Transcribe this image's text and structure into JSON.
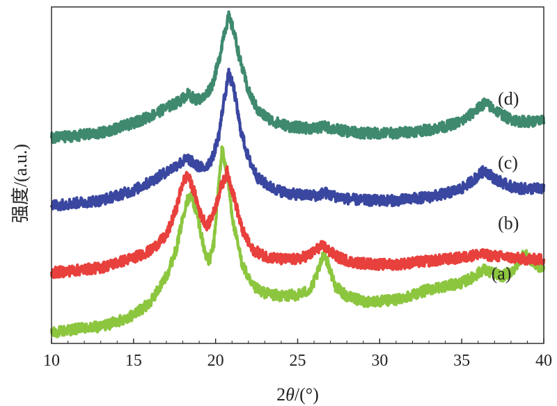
{
  "chart_data": {
    "type": "line",
    "title": "",
    "xlabel_prefix": "2",
    "xlabel_theta": "θ",
    "xlabel_suffix": "/(°)",
    "ylabel": "强度/(a.u.)",
    "xlim": [
      10,
      40
    ],
    "ylim": [
      0,
      100
    ],
    "x_ticks": [
      10,
      15,
      20,
      25,
      30,
      35,
      40
    ],
    "x_tick_labels": [
      "10",
      "15",
      "20",
      "25",
      "30",
      "35",
      "40"
    ],
    "y_ticks_visible": false,
    "grid": false,
    "series": [
      {
        "name": "(a)",
        "color": "#8cc63f",
        "label_at": [
          38.5,
          19
        ],
        "points": [
          [
            10,
            3
          ],
          [
            11,
            4
          ],
          [
            12,
            4.5
          ],
          [
            13,
            5
          ],
          [
            14,
            6.5
          ],
          [
            15,
            8.5
          ],
          [
            16,
            12
          ],
          [
            17,
            20
          ],
          [
            17.6,
            28
          ],
          [
            18.2,
            42
          ],
          [
            18.5,
            44
          ],
          [
            18.9,
            38
          ],
          [
            19.3,
            28
          ],
          [
            19.6,
            24
          ],
          [
            19.9,
            30
          ],
          [
            20.2,
            48
          ],
          [
            20.4,
            58
          ],
          [
            20.7,
            50
          ],
          [
            21.1,
            35
          ],
          [
            21.6,
            24
          ],
          [
            22.2,
            17
          ],
          [
            23,
            15
          ],
          [
            24,
            14
          ],
          [
            25,
            14.5
          ],
          [
            25.8,
            16
          ],
          [
            26.3,
            22
          ],
          [
            26.6,
            27
          ],
          [
            26.9,
            23
          ],
          [
            27.3,
            17
          ],
          [
            28,
            14
          ],
          [
            29,
            12.5
          ],
          [
            30,
            12.5
          ],
          [
            31,
            13
          ],
          [
            32,
            14.5
          ],
          [
            33,
            16
          ],
          [
            34,
            17
          ],
          [
            35,
            18
          ],
          [
            35.8,
            20
          ],
          [
            36.3,
            22
          ],
          [
            36.8,
            21
          ],
          [
            37.5,
            20
          ],
          [
            38.2,
            22
          ],
          [
            38.8,
            27
          ],
          [
            39.3,
            24
          ],
          [
            40,
            22
          ]
        ]
      },
      {
        "name": "(b)",
        "color": "#e8403c",
        "label_at": [
          38.9,
          34
        ],
        "points": [
          [
            10,
            21
          ],
          [
            11,
            21.5
          ],
          [
            12,
            22
          ],
          [
            13,
            22.5
          ],
          [
            14,
            24
          ],
          [
            15,
            25.5
          ],
          [
            16,
            27.5
          ],
          [
            17,
            32
          ],
          [
            17.6,
            40
          ],
          [
            18,
            48
          ],
          [
            18.3,
            50
          ],
          [
            18.7,
            45
          ],
          [
            19.1,
            38
          ],
          [
            19.5,
            35
          ],
          [
            19.9,
            39
          ],
          [
            20.3,
            46
          ],
          [
            20.7,
            51
          ],
          [
            21.1,
            44
          ],
          [
            21.6,
            34
          ],
          [
            22.2,
            28
          ],
          [
            23,
            26
          ],
          [
            24,
            25
          ],
          [
            25,
            25
          ],
          [
            25.8,
            26.5
          ],
          [
            26.3,
            28.5
          ],
          [
            26.6,
            29
          ],
          [
            26.9,
            27.5
          ],
          [
            27.5,
            25.5
          ],
          [
            28.5,
            24
          ],
          [
            30,
            23.5
          ],
          [
            31,
            23.5
          ],
          [
            32,
            24
          ],
          [
            33,
            24.5
          ],
          [
            34,
            25
          ],
          [
            35,
            25.5
          ],
          [
            36,
            26.5
          ],
          [
            37,
            26
          ],
          [
            38,
            25.5
          ],
          [
            39,
            25
          ],
          [
            40,
            25
          ]
        ]
      },
      {
        "name": "(c)",
        "color": "#3a47a0",
        "label_at": [
          38.9,
          52
        ],
        "points": [
          [
            10,
            41
          ],
          [
            11,
            41.5
          ],
          [
            12,
            42
          ],
          [
            13,
            42.5
          ],
          [
            14,
            44
          ],
          [
            15,
            45.5
          ],
          [
            16,
            48
          ],
          [
            17,
            51
          ],
          [
            17.8,
            53.5
          ],
          [
            18.3,
            55
          ],
          [
            18.8,
            53
          ],
          [
            19.3,
            52
          ],
          [
            19.8,
            55
          ],
          [
            20.2,
            62
          ],
          [
            20.5,
            72
          ],
          [
            20.8,
            80
          ],
          [
            21.1,
            76
          ],
          [
            21.5,
            64
          ],
          [
            22,
            55
          ],
          [
            22.6,
            49
          ],
          [
            23.5,
            46
          ],
          [
            24.5,
            44.5
          ],
          [
            25.5,
            44
          ],
          [
            26.3,
            44
          ],
          [
            26.6,
            45
          ],
          [
            27,
            44
          ],
          [
            28,
            43
          ],
          [
            29,
            42.5
          ],
          [
            30,
            42.5
          ],
          [
            31,
            42.5
          ],
          [
            32,
            43
          ],
          [
            33,
            43.5
          ],
          [
            34,
            44.5
          ],
          [
            35,
            46
          ],
          [
            35.8,
            49
          ],
          [
            36.4,
            51.5
          ],
          [
            37,
            49
          ],
          [
            37.8,
            47
          ],
          [
            38.5,
            46
          ],
          [
            39.3,
            46
          ],
          [
            40,
            46
          ]
        ]
      },
      {
        "name": "(d)",
        "color": "#3f8a6e",
        "label_at": [
          38.9,
          71
        ],
        "points": [
          [
            10,
            61
          ],
          [
            11,
            61.5
          ],
          [
            12,
            62
          ],
          [
            13,
            62.5
          ],
          [
            14,
            64
          ],
          [
            15,
            65.5
          ],
          [
            16,
            67.5
          ],
          [
            17,
            70
          ],
          [
            17.8,
            72
          ],
          [
            18.3,
            74
          ],
          [
            18.8,
            72.5
          ],
          [
            19.3,
            73
          ],
          [
            19.8,
            77
          ],
          [
            20.2,
            84
          ],
          [
            20.5,
            92
          ],
          [
            20.8,
            97
          ],
          [
            21.1,
            93
          ],
          [
            21.5,
            84
          ],
          [
            22,
            75
          ],
          [
            22.6,
            69
          ],
          [
            23.5,
            66
          ],
          [
            24.5,
            64.5
          ],
          [
            25.5,
            64
          ],
          [
            26.3,
            64
          ],
          [
            26.6,
            64.5
          ],
          [
            27,
            64
          ],
          [
            28,
            63
          ],
          [
            29,
            62.5
          ],
          [
            30,
            62.5
          ],
          [
            31,
            62.5
          ],
          [
            32,
            63
          ],
          [
            33,
            63.5
          ],
          [
            34,
            64.5
          ],
          [
            35,
            66
          ],
          [
            35.8,
            69
          ],
          [
            36.4,
            71.5
          ],
          [
            37,
            69.5
          ],
          [
            37.8,
            67
          ],
          [
            38.5,
            66
          ],
          [
            39.3,
            66
          ],
          [
            40,
            66
          ]
        ]
      }
    ]
  }
}
